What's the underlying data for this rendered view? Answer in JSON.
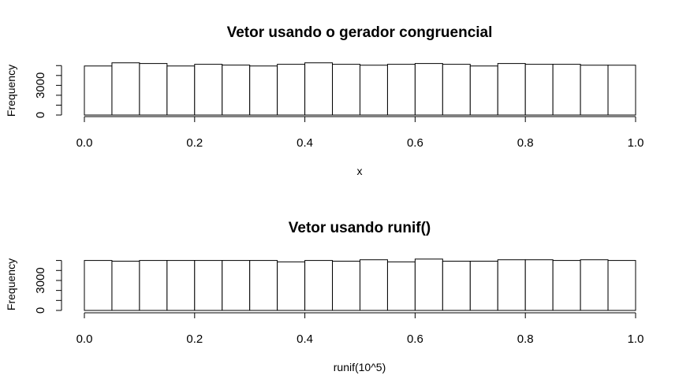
{
  "chart_data": [
    {
      "type": "bar",
      "title": "Vetor usando o gerador congruencial",
      "xlabel": "x",
      "ylabel": "Frequency",
      "xlim": [
        0,
        1
      ],
      "ylim": [
        0,
        5200
      ],
      "bin_width": 0.05,
      "x_ticks": [
        "0.0",
        "0.2",
        "0.4",
        "0.6",
        "0.8",
        "1.0"
      ],
      "y_ticks": [
        "0",
        "3000"
      ],
      "categories": [
        "0.00-0.05",
        "0.05-0.10",
        "0.10-0.15",
        "0.15-0.20",
        "0.20-0.25",
        "0.25-0.30",
        "0.30-0.35",
        "0.35-0.40",
        "0.40-0.45",
        "0.45-0.50",
        "0.50-0.55",
        "0.55-0.60",
        "0.60-0.65",
        "0.65-0.70",
        "0.70-0.75",
        "0.75-0.80",
        "0.80-0.85",
        "0.85-0.90",
        "0.90-0.95",
        "0.95-1.00"
      ],
      "values": [
        4960,
        5280,
        5210,
        4960,
        5130,
        5050,
        4960,
        5130,
        5280,
        5130,
        5040,
        5130,
        5210,
        5130,
        4960,
        5210,
        5130,
        5130,
        5040,
        5040
      ],
      "grid": false,
      "legend": "none"
    },
    {
      "type": "bar",
      "title": "Vetor usando runif()",
      "xlabel": "runif(10^5)",
      "ylabel": "Frequency",
      "xlim": [
        0,
        1
      ],
      "ylim": [
        0,
        5200
      ],
      "bin_width": 0.05,
      "x_ticks": [
        "0.0",
        "0.2",
        "0.4",
        "0.6",
        "0.8",
        "1.0"
      ],
      "y_ticks": [
        "0",
        "3000"
      ],
      "categories": [
        "0.00-0.05",
        "0.05-0.10",
        "0.10-0.15",
        "0.15-0.20",
        "0.20-0.25",
        "0.25-0.30",
        "0.30-0.35",
        "0.35-0.40",
        "0.40-0.45",
        "0.45-0.50",
        "0.50-0.55",
        "0.55-0.60",
        "0.60-0.65",
        "0.65-0.70",
        "0.70-0.75",
        "0.75-0.80",
        "0.80-0.85",
        "0.85-0.90",
        "0.90-0.95",
        "0.95-1.00"
      ],
      "values": [
        5000,
        4930,
        5000,
        5000,
        5000,
        5000,
        5000,
        4860,
        5000,
        4930,
        5070,
        4860,
        5140,
        4930,
        4930,
        5070,
        5070,
        5000,
        5070,
        5000
      ],
      "grid": false,
      "legend": "none"
    }
  ]
}
